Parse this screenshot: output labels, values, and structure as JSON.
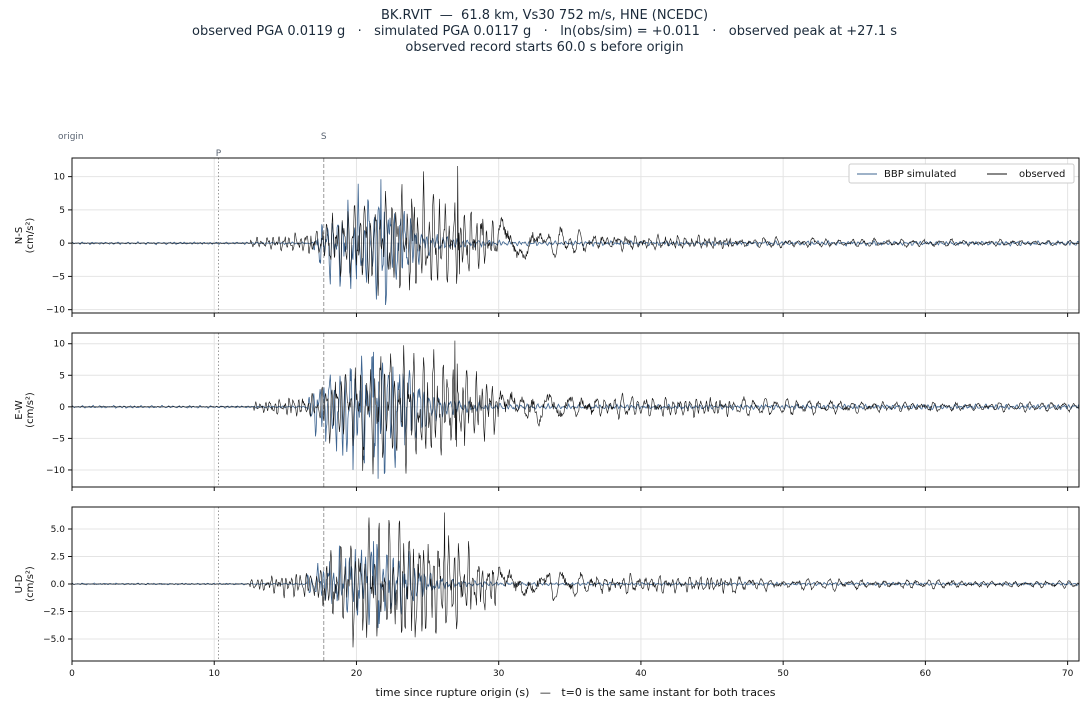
{
  "title": {
    "line1": "BK.RVIT  —  61.8 km, Vs30 752 m/s, HNE (NCEDC)",
    "line2": "observed PGA 0.0119 g   ·   simulated PGA 0.0117 g   ·   ln(obs/sim) = +0.011   ·   observed peak at +27.1 s",
    "line3": "observed record starts 60.0 s before origin"
  },
  "markers": {
    "origin": {
      "label": "origin",
      "t": 0
    },
    "P": {
      "label": "P",
      "t": 10.3
    },
    "S": {
      "label": "S",
      "t": 17.7
    }
  },
  "xlabel": "time since rupture origin (s)   —   t=0 is the same instant for both traces",
  "legend": {
    "position": "top-right",
    "items": [
      {
        "label": "BBP simulated",
        "color": "#3d6490"
      },
      {
        "label": "observed",
        "color": "#111111"
      }
    ]
  },
  "colors": {
    "simulated": "#3d6490",
    "observed": "#111111",
    "grid": "#e4e4e4"
  },
  "chart_data": {
    "type": "line",
    "x_range": [
      0,
      70.8
    ],
    "x_ticks": [
      0,
      10,
      20,
      30,
      40,
      50,
      60,
      70
    ],
    "grid": true,
    "panels": [
      {
        "name": "N-S",
        "ylabel": "N-S\n(cm/s²)",
        "ylim": [
          -10.5,
          12.8
        ],
        "yticks": [
          -10,
          -5,
          0,
          5,
          10
        ],
        "ytick_labels": [
          "−10",
          "−5",
          "0",
          "5",
          "10"
        ],
        "observed": {
          "onset": 12.5,
          "peak_t": 27.1,
          "peak": 11.6,
          "min": -8.5,
          "tail": 1.1,
          "seed": 11
        },
        "simulated": {
          "onset": 17.5,
          "end": 24.5,
          "peak": 9.6,
          "min": -9.3,
          "seed": 21
        }
      },
      {
        "name": "E-W",
        "ylabel": "E-W\n(cm/s²)",
        "ylim": [
          -12.7,
          11.7
        ],
        "yticks": [
          -10,
          -5,
          0,
          5,
          10
        ],
        "ytick_labels": [
          "−10",
          "−5",
          "0",
          "5",
          "10"
        ],
        "observed": {
          "onset": 12.8,
          "peak_t": 26.9,
          "peak": 10.5,
          "min": -11.5,
          "tail": 1.3,
          "seed": 33
        },
        "simulated": {
          "onset": 17.0,
          "end": 25.0,
          "peak": 8.7,
          "min": -11.4,
          "seed": 43
        }
      },
      {
        "name": "U-D",
        "ylabel": "U-D\n(cm/s²)",
        "ylim": [
          -7.0,
          7.0
        ],
        "yticks": [
          -5.0,
          -2.5,
          0.0,
          2.5,
          5.0
        ],
        "ytick_labels": [
          "−5.0",
          "−2.5",
          "0.0",
          "2.5",
          "5.0"
        ],
        "observed": {
          "onset": 12.5,
          "peak_t": 26.2,
          "peak": 6.5,
          "min": -6.2,
          "tail": 0.6,
          "seed": 55
        },
        "simulated": {
          "onset": 17.0,
          "end": 25.0,
          "peak": 3.9,
          "min": -4.0,
          "seed": 65
        }
      }
    ]
  }
}
